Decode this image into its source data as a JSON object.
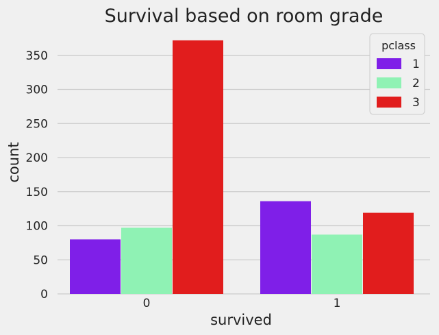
{
  "chart_data": {
    "type": "bar",
    "title": "Survival based on room grade",
    "xlabel": "survived",
    "ylabel": "count",
    "categories": [
      "0",
      "1"
    ],
    "series": [
      {
        "name": "1",
        "color": "#7f1fe8",
        "values": [
          80,
          136
        ]
      },
      {
        "name": "2",
        "color": "#8ff2b4",
        "values": [
          97,
          87
        ]
      },
      {
        "name": "3",
        "color": "#e11d1d",
        "values": [
          372,
          119
        ]
      }
    ],
    "yticks": [
      0,
      50,
      100,
      150,
      200,
      250,
      300,
      350
    ],
    "ylim": [
      0,
      391
    ],
    "grid": "horizontal",
    "legend": {
      "title": "pclass",
      "position": "top-right"
    }
  }
}
